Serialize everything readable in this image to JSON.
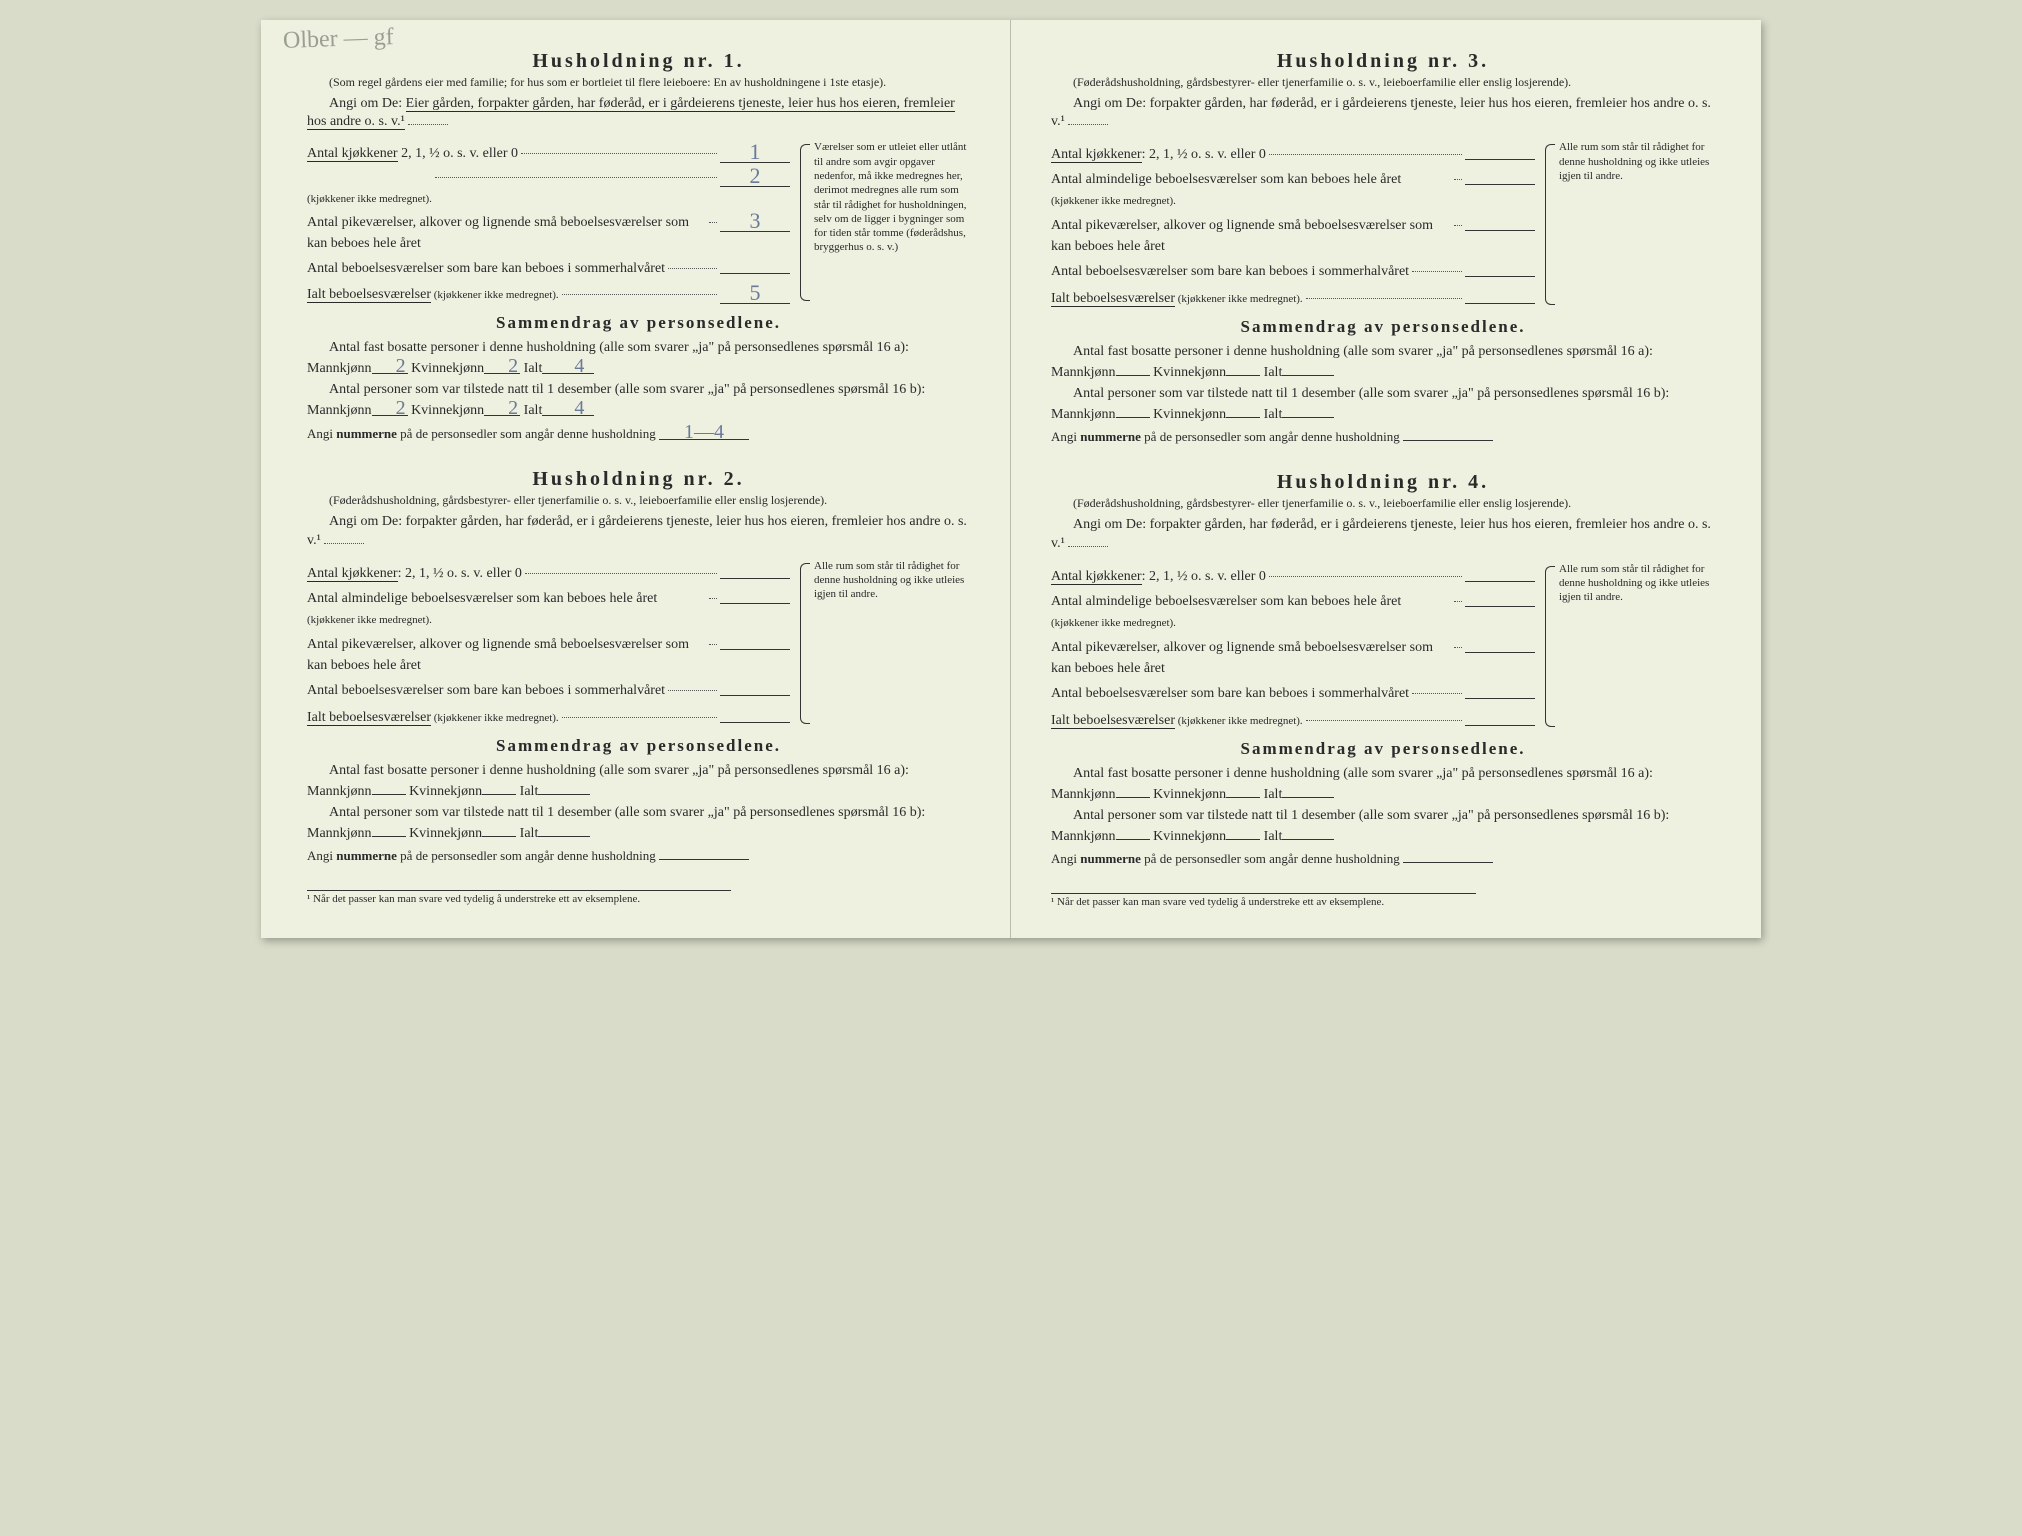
{
  "pencil_note": "Olber — gf",
  "common": {
    "angi_prefix": "Angi om De:",
    "angi_owner": "Eier gården, forpakter gården, har føderåd, er i gårdeierens tjeneste, leier hus hos eieren, fremleier hos andre o. s. v.¹",
    "angi_other": "forpakter gården, har føderåd, er i gårdeierens tjeneste, leier hus hos eieren, fremleier hos andre o. s. v.¹",
    "rooms": {
      "kitchens_label": "Antal kjøkkener",
      "kitchens_variant_a": " 2, 1, ½ o. s. v. eller 0",
      "kitchens_variant_b": ": 2, 1, ½ o. s. v. eller 0",
      "living_label": "Antal almindelige beboelsesværelser som kan beboes hele året",
      "living_small": " (kjøkkener ikke medregnet).",
      "maids_label": "Antal pikeværelser, alkover og lignende små beboelsesværelser som kan beboes hele året",
      "summer_label": "Antal beboelsesværelser som bare kan beboes i sommerhalvåret",
      "total_label": "Ialt beboelsesværelser",
      "total_small": " (kjøkkener ikke medregnet)."
    },
    "rooms_note_hh1": "Værelser som er utleiet eller utlånt til andre som avgir opgaver nedenfor, må ikke medregnes her, derimot medregnes alle rum som står til rådighet for husholdningen, selv om de ligger i bygninger som for tiden står tomme (føderådshus, bryggerhus o. s. v.)",
    "rooms_note_other": "Alle rum som står til rådighet for denne husholdning og ikke utleies igjen til andre.",
    "samm": {
      "title": "Sammendrag av personsedlene.",
      "q16a_lead": "Antal fast bosatte personer i denne husholdning (alle som svarer „ja\" på personsedlenes spørsmål 16 a): ",
      "q16b_lead": "Antal personer som var tilstede natt til 1 desember (alle som svarer „ja\" på personsedlenes spørsmål 16 b): ",
      "mann": "Mannkjønn",
      "kvinne": "Kvinnekjønn",
      "ialt": "Ialt",
      "nummerne_lead": "Angi ",
      "nummerne_bold": "nummerne",
      "nummerne_tail": " på de personsedler som angår denne husholdning"
    },
    "footnote": "¹  Når det passer kan man svare ved tydelig å understreke ett av eksemplene."
  },
  "hh1": {
    "title": "Husholdning nr. 1.",
    "subdesc": "(Som regel gårdens eier med familie; for hus som er bortleiet til flere leieboere: En av husholdningene i 1ste etasje).",
    "vals": {
      "kitchens": "1",
      "living": "2",
      "maids": "3",
      "summer": "",
      "total": "5"
    },
    "samm": {
      "a_m": "2",
      "a_k": "2",
      "a_t": "4",
      "b_m": "2",
      "b_k": "2",
      "b_t": "4",
      "nums": "1—4"
    }
  },
  "hh2": {
    "title": "Husholdning nr. 2.",
    "subdesc": "(Føderådshusholdning, gårdsbestyrer- eller tjenerfamilie o. s. v., leieboerfamilie eller enslig losjerende).",
    "vals": {
      "kitchens": "",
      "living": "",
      "maids": "",
      "summer": "",
      "total": ""
    },
    "samm": {
      "a_m": "",
      "a_k": "",
      "a_t": "",
      "b_m": "",
      "b_k": "",
      "b_t": "",
      "nums": ""
    }
  },
  "hh3": {
    "title": "Husholdning nr. 3.",
    "subdesc": "(Føderådshusholdning, gårdsbestyrer- eller tjenerfamilie o. s. v., leieboerfamilie eller enslig losjerende).",
    "vals": {
      "kitchens": "",
      "living": "",
      "maids": "",
      "summer": "",
      "total": ""
    },
    "samm": {
      "a_m": "",
      "a_k": "",
      "a_t": "",
      "b_m": "",
      "b_k": "",
      "b_t": "",
      "nums": ""
    }
  },
  "hh4": {
    "title": "Husholdning nr. 4.",
    "subdesc": "(Føderådshusholdning, gårdsbestyrer- eller tjenerfamilie o. s. v., leieboerfamilie eller enslig losjerende).",
    "vals": {
      "kitchens": "",
      "living": "",
      "maids": "",
      "summer": "",
      "total": ""
    },
    "samm": {
      "a_m": "",
      "a_k": "",
      "a_t": "",
      "b_m": "",
      "b_k": "",
      "b_t": "",
      "nums": ""
    }
  }
}
